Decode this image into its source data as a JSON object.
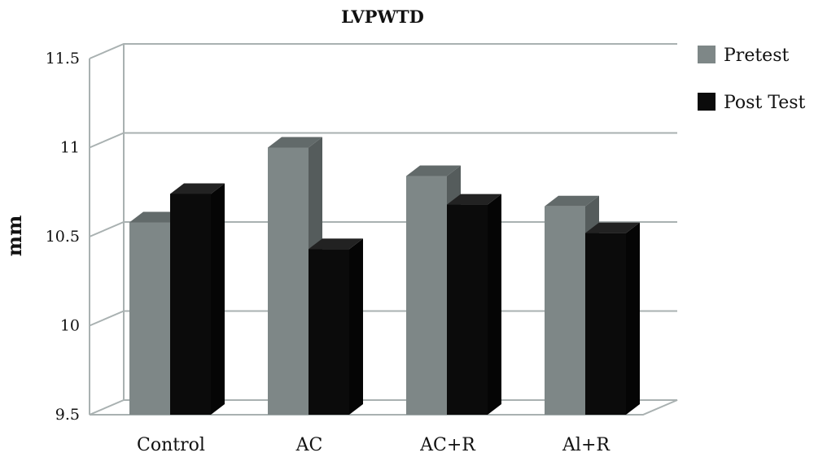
{
  "chart_data": {
    "type": "bar",
    "title": "LVPWTD",
    "ylabel": "mm",
    "xlabel": "",
    "ylim": [
      9.5,
      11.5
    ],
    "yticks": [
      "9.5",
      "10",
      "10.5",
      "11",
      "11.5"
    ],
    "categories": [
      "Control",
      "AC",
      "AC+R",
      "Al+R"
    ],
    "series": [
      {
        "name": "Pretest",
        "values": [
          10.58,
          11.0,
          10.84,
          10.67
        ],
        "color": "#7e8787"
      },
      {
        "name": "Post Test",
        "values": [
          10.74,
          10.43,
          10.68,
          10.52
        ],
        "color": "#0b0b0b"
      }
    ],
    "grid": true,
    "legend": "top-right"
  }
}
